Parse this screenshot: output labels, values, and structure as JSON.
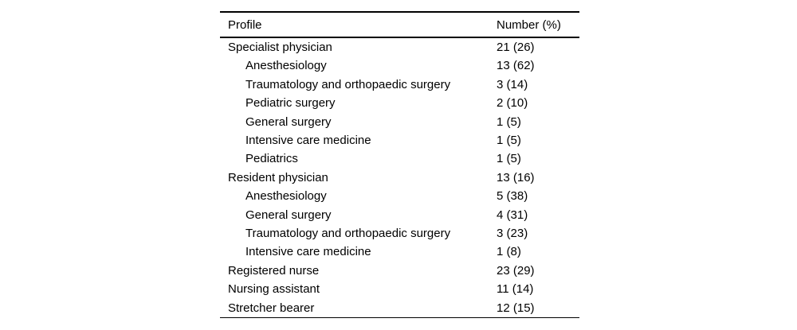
{
  "table": {
    "columns": {
      "profile": "Profile",
      "number": "Number (%)"
    },
    "rows": [
      {
        "label": "Specialist physician",
        "value": "21 (26)",
        "indent": false
      },
      {
        "label": "Anesthesiology",
        "value": "13 (62)",
        "indent": true
      },
      {
        "label": "Traumatology and orthopaedic surgery",
        "value": "3 (14)",
        "indent": true
      },
      {
        "label": "Pediatric surgery",
        "value": "2 (10)",
        "indent": true
      },
      {
        "label": "General surgery",
        "value": "1 (5)",
        "indent": true
      },
      {
        "label": "Intensive care medicine",
        "value": "1 (5)",
        "indent": true
      },
      {
        "label": "Pediatrics",
        "value": "1 (5)",
        "indent": true
      },
      {
        "label": "Resident physician",
        "value": "13 (16)",
        "indent": false
      },
      {
        "label": "Anesthesiology",
        "value": "5 (38)",
        "indent": true
      },
      {
        "label": "General surgery",
        "value": "4 (31)",
        "indent": true
      },
      {
        "label": "Traumatology and orthopaedic surgery",
        "value": "3 (23)",
        "indent": true
      },
      {
        "label": "Intensive care medicine",
        "value": "1 (8)",
        "indent": true
      },
      {
        "label": "Registered nurse",
        "value": "23 (29)",
        "indent": false
      },
      {
        "label": "Nursing assistant",
        "value": "11 (14)",
        "indent": false
      },
      {
        "label": "Stretcher bearer",
        "value": "12 (15)",
        "indent": false
      }
    ],
    "colors": {
      "text": "#000000",
      "rule": "#000000",
      "background": "#ffffff"
    }
  }
}
